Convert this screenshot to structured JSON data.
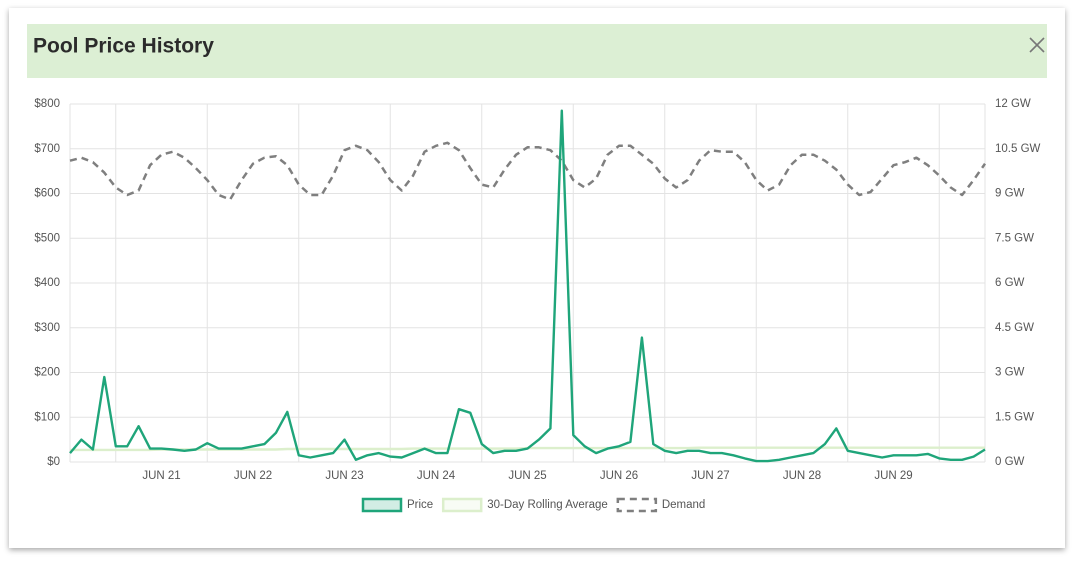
{
  "header": {
    "title": "Pool Price History"
  },
  "chart_data": {
    "type": "line",
    "categories": [
      null,
      null,
      null,
      null,
      null,
      null,
      null,
      null,
      "JUN 21",
      null,
      null,
      null,
      null,
      null,
      null,
      null,
      "JUN 22",
      null,
      null,
      null,
      null,
      null,
      null,
      null,
      "JUN 23",
      null,
      null,
      null,
      null,
      null,
      null,
      null,
      "JUN 24",
      null,
      null,
      null,
      null,
      null,
      null,
      null,
      "JUN 25",
      null,
      null,
      null,
      null,
      null,
      null,
      null,
      "JUN 26",
      null,
      null,
      null,
      null,
      null,
      null,
      null,
      "JUN 27",
      null,
      null,
      null,
      null,
      null,
      null,
      null,
      "JUN 28",
      null,
      null,
      null,
      null,
      null,
      null,
      null,
      "JUN 29",
      null,
      null,
      null,
      null,
      null,
      null,
      null,
      null
    ],
    "series": [
      {
        "name": "Price",
        "color": "#1fa57a",
        "values": [
          20,
          50,
          28,
          190,
          35,
          35,
          80,
          30,
          30,
          28,
          25,
          28,
          42,
          30,
          30,
          30,
          35,
          40,
          65,
          112,
          15,
          10,
          15,
          20,
          50,
          5,
          15,
          20,
          12,
          10,
          20,
          30,
          20,
          20,
          118,
          110,
          40,
          20,
          25,
          25,
          30,
          50,
          75,
          785,
          60,
          35,
          20,
          30,
          35,
          45,
          278,
          40,
          25,
          20,
          25,
          25,
          20,
          20,
          15,
          8,
          2,
          2,
          5,
          10,
          15,
          20,
          40,
          75,
          25,
          20,
          15,
          10,
          15,
          15,
          15,
          18,
          8,
          5,
          5,
          12,
          28
        ]
      },
      {
        "name": "30-Day Rolling Average",
        "color": "#dcefcc",
        "values": [
          27,
          27,
          27,
          27,
          27,
          27,
          27,
          27,
          28,
          28,
          28,
          28,
          28,
          28,
          28,
          28,
          28,
          28,
          28,
          29,
          29,
          29,
          29,
          29,
          29,
          29,
          29,
          29,
          29,
          29,
          30,
          30,
          30,
          30,
          30,
          30,
          30,
          30,
          30,
          30,
          31,
          31,
          31,
          31,
          31,
          31,
          31,
          31,
          31,
          31,
          31,
          31,
          31,
          31,
          31,
          32,
          32,
          32,
          32,
          32,
          32,
          32,
          32,
          32,
          32,
          32,
          32,
          32,
          32,
          32,
          32,
          32,
          32,
          32,
          32,
          32,
          32,
          32,
          32,
          32,
          32
        ]
      },
      {
        "name": "Demand",
        "color": "#7f7f7f",
        "axis": "y2",
        "dashed": true,
        "values": [
          10.1,
          10.2,
          10.05,
          9.7,
          9.2,
          8.95,
          9.1,
          9.95,
          10.3,
          10.4,
          10.2,
          9.85,
          9.45,
          8.95,
          8.8,
          9.45,
          10.0,
          10.2,
          10.25,
          9.95,
          9.3,
          8.95,
          8.95,
          9.6,
          10.45,
          10.6,
          10.45,
          10.05,
          9.45,
          9.1,
          9.6,
          10.4,
          10.6,
          10.7,
          10.45,
          9.85,
          9.3,
          9.2,
          9.8,
          10.3,
          10.55,
          10.55,
          10.45,
          10.1,
          9.45,
          9.2,
          9.5,
          10.3,
          10.6,
          10.6,
          10.3,
          10.0,
          9.5,
          9.2,
          9.45,
          10.1,
          10.45,
          10.4,
          10.4,
          10.05,
          9.45,
          9.1,
          9.3,
          9.95,
          10.3,
          10.3,
          10.1,
          9.8,
          9.3,
          8.95,
          9.05,
          9.5,
          9.95,
          10.05,
          10.2,
          9.95,
          9.6,
          9.2,
          8.95,
          9.45,
          10.0
        ]
      }
    ],
    "ylim": [
      0,
      800
    ],
    "yticks": [
      {
        "value": 0,
        "label": "$0"
      },
      {
        "value": 100,
        "label": "$100"
      },
      {
        "value": 200,
        "label": "$200"
      },
      {
        "value": 300,
        "label": "$300"
      },
      {
        "value": 400,
        "label": "$400"
      },
      {
        "value": 500,
        "label": "$500"
      },
      {
        "value": 600,
        "label": "$600"
      },
      {
        "value": 700,
        "label": "$700"
      },
      {
        "value": 800,
        "label": "$800"
      }
    ],
    "y2lim": [
      0,
      12
    ],
    "y2ticks": [
      {
        "value": 0,
        "label": "0 GW"
      },
      {
        "value": 1.5,
        "label": "1.5 GW"
      },
      {
        "value": 3,
        "label": "3 GW"
      },
      {
        "value": 4.5,
        "label": "4.5 GW"
      },
      {
        "value": 6,
        "label": "6 GW"
      },
      {
        "value": 7.5,
        "label": "7.5 GW"
      },
      {
        "value": 9,
        "label": "9 GW"
      },
      {
        "value": 10.5,
        "label": "10.5 GW"
      },
      {
        "value": 12,
        "label": "12 GW"
      }
    ],
    "grid": true
  }
}
